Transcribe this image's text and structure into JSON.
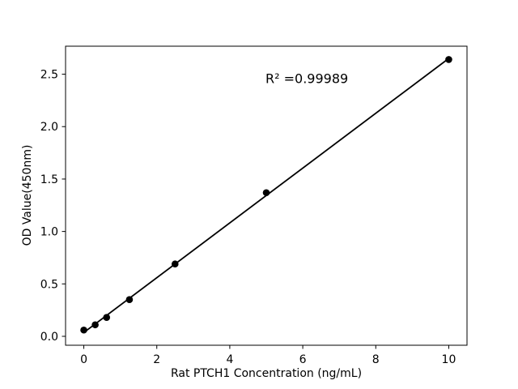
{
  "chart_data": {
    "type": "scatter",
    "title": "",
    "xlabel": "Rat PTCH1 Concentration (ng/mL)",
    "ylabel": "OD Value(450nm)",
    "annotation": "R² =0.99989",
    "x": [
      0,
      0.312,
      0.625,
      1.25,
      2.5,
      5,
      10
    ],
    "y": [
      0.06,
      0.11,
      0.18,
      0.35,
      0.69,
      1.37,
      2.64
    ],
    "fit": "linear",
    "marker": "circle",
    "xlim": [
      -0.5,
      10.5
    ],
    "ylim": [
      -0.085,
      2.767
    ],
    "x_ticks": [
      0,
      2,
      4,
      6,
      8,
      10
    ],
    "x_tick_labels": [
      "0",
      "2",
      "4",
      "6",
      "8",
      "10"
    ],
    "y_ticks": [
      0,
      0.5,
      1.0,
      1.5,
      2.0,
      2.5
    ],
    "y_tick_labels": [
      "0.0",
      "0.5",
      "1.0",
      "1.5",
      "2.0",
      "2.5"
    ],
    "grid": false,
    "legend": false,
    "colors": {
      "points": "#000000",
      "line": "#000000",
      "text": "#000000",
      "background": "#ffffff"
    }
  }
}
